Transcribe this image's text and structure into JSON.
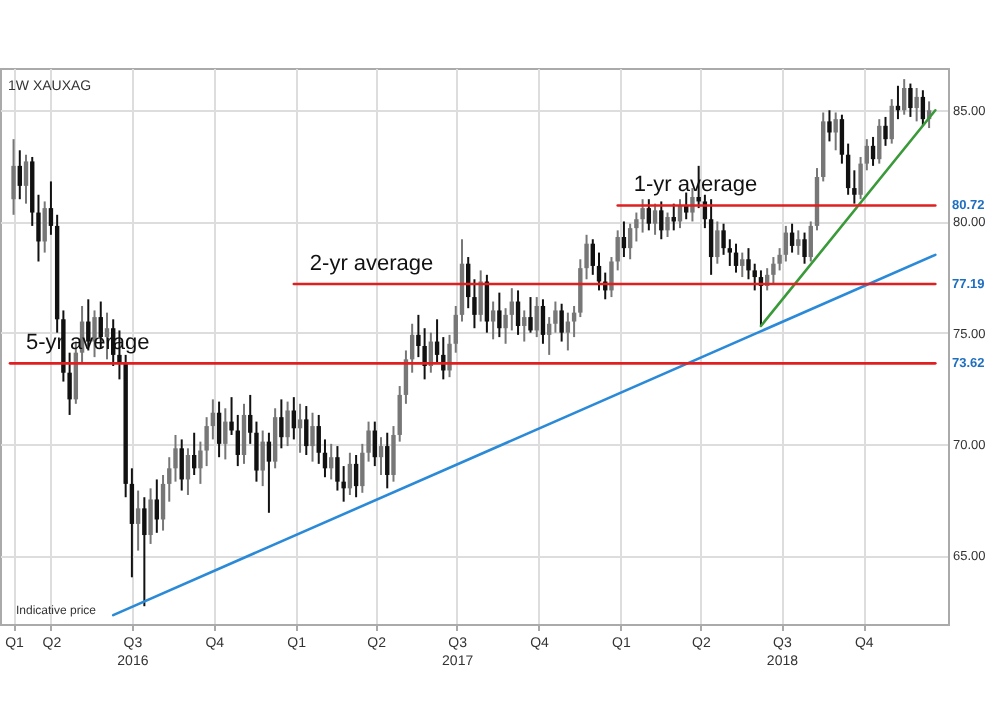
{
  "chart_data": {
    "type": "candlestick",
    "title": "1W XAUXAG",
    "x": [
      "2016-02-19",
      "2016-02-26",
      "2016-03-04",
      "2016-03-11",
      "2016-03-18",
      "2016-03-25",
      "2016-04-01",
      "2016-04-08",
      "2016-04-15",
      "2016-04-22",
      "2016-04-29",
      "2016-05-06",
      "2016-05-13",
      "2016-05-20",
      "2016-05-27",
      "2016-06-03",
      "2016-06-10",
      "2016-06-17",
      "2016-06-24",
      "2016-07-01",
      "2016-07-08",
      "2016-07-15",
      "2016-07-22",
      "2016-07-29",
      "2016-08-05",
      "2016-08-12",
      "2016-08-19",
      "2016-08-26",
      "2016-09-02",
      "2016-09-09",
      "2016-09-16",
      "2016-09-23",
      "2016-09-30",
      "2016-10-07",
      "2016-10-14",
      "2016-10-21",
      "2016-10-28",
      "2016-11-04",
      "2016-11-11",
      "2016-11-18",
      "2016-11-25",
      "2016-12-02",
      "2016-12-09",
      "2016-12-16",
      "2016-12-23",
      "2016-12-30",
      "2017-01-06",
      "2017-01-13",
      "2017-01-20",
      "2017-01-27",
      "2017-02-03",
      "2017-02-10",
      "2017-02-17",
      "2017-02-24",
      "2017-03-03",
      "2017-03-10",
      "2017-03-17",
      "2017-03-24",
      "2017-03-31",
      "2017-04-07",
      "2017-04-14",
      "2017-04-21",
      "2017-04-28",
      "2017-05-05",
      "2017-05-12",
      "2017-05-19",
      "2017-05-26",
      "2017-06-02",
      "2017-06-09",
      "2017-06-16",
      "2017-06-23",
      "2017-06-30",
      "2017-07-07",
      "2017-07-14",
      "2017-07-21",
      "2017-07-28",
      "2017-08-04",
      "2017-08-11",
      "2017-08-18",
      "2017-08-25",
      "2017-09-01",
      "2017-09-08",
      "2017-09-15",
      "2017-09-22",
      "2017-09-29",
      "2017-10-06",
      "2017-10-13",
      "2017-10-20",
      "2017-10-27",
      "2017-11-03",
      "2017-11-10",
      "2017-11-17",
      "2017-11-24",
      "2017-12-01",
      "2017-12-08",
      "2017-12-15",
      "2017-12-22",
      "2017-12-29",
      "2018-01-05",
      "2018-01-12",
      "2018-01-19",
      "2018-01-26",
      "2018-02-02",
      "2018-02-09",
      "2018-02-16",
      "2018-02-23",
      "2018-03-02",
      "2018-03-09",
      "2018-03-16",
      "2018-03-23",
      "2018-03-30",
      "2018-04-06",
      "2018-04-13",
      "2018-04-20",
      "2018-04-27",
      "2018-05-04",
      "2018-05-11",
      "2018-05-18",
      "2018-05-25",
      "2018-06-01",
      "2018-06-08",
      "2018-06-15",
      "2018-06-22",
      "2018-06-29",
      "2018-07-06",
      "2018-07-13",
      "2018-07-20",
      "2018-07-27",
      "2018-08-03",
      "2018-08-10",
      "2018-08-17",
      "2018-08-24",
      "2018-08-31",
      "2018-09-07",
      "2018-09-14",
      "2018-09-21",
      "2018-09-28",
      "2018-10-05",
      "2018-10-12",
      "2018-10-19",
      "2018-10-26",
      "2018-11-02",
      "2018-11-09",
      "2018-11-16",
      "2018-11-23",
      "2018-11-30",
      "2018-12-07",
      "2018-12-14"
    ],
    "ohlc": [
      [
        81.0,
        83.7,
        80.3,
        82.5
      ],
      [
        82.5,
        83.2,
        81.0,
        81.6
      ],
      [
        81.6,
        83.0,
        80.8,
        82.7
      ],
      [
        82.7,
        82.9,
        79.8,
        80.4
      ],
      [
        80.4,
        81.2,
        78.2,
        79.1
      ],
      [
        79.1,
        80.9,
        78.6,
        80.6
      ],
      [
        80.6,
        81.8,
        79.4,
        79.8
      ],
      [
        79.8,
        80.3,
        75.0,
        75.6
      ],
      [
        75.6,
        76.0,
        72.8,
        73.2
      ],
      [
        73.2,
        74.1,
        71.3,
        72.0
      ],
      [
        72.0,
        74.6,
        71.8,
        74.1
      ],
      [
        74.1,
        76.2,
        73.6,
        75.5
      ],
      [
        75.5,
        76.5,
        74.2,
        74.6
      ],
      [
        74.6,
        76.0,
        73.9,
        75.7
      ],
      [
        75.7,
        76.4,
        74.3,
        74.8
      ],
      [
        74.8,
        75.9,
        73.8,
        75.2
      ],
      [
        75.2,
        75.6,
        73.5,
        74.0
      ],
      [
        74.0,
        75.1,
        72.9,
        73.6
      ],
      [
        73.6,
        74.0,
        67.6,
        68.2
      ],
      [
        68.2,
        68.9,
        64.0,
        66.4
      ],
      [
        66.4,
        67.9,
        65.2,
        67.1
      ],
      [
        67.1,
        67.6,
        62.7,
        65.9
      ],
      [
        65.9,
        68.0,
        65.5,
        67.5
      ],
      [
        67.5,
        68.4,
        66.0,
        66.6
      ],
      [
        66.6,
        68.6,
        66.1,
        68.2
      ],
      [
        68.2,
        69.4,
        67.4,
        68.9
      ],
      [
        68.9,
        70.4,
        68.3,
        69.8
      ],
      [
        69.8,
        70.2,
        67.9,
        68.4
      ],
      [
        68.4,
        69.8,
        67.7,
        69.5
      ],
      [
        69.5,
        70.5,
        68.6,
        68.9
      ],
      [
        68.9,
        70.1,
        68.2,
        69.7
      ],
      [
        69.7,
        71.2,
        69.0,
        70.8
      ],
      [
        70.8,
        72.0,
        70.2,
        71.4
      ],
      [
        71.4,
        71.9,
        69.4,
        70.0
      ],
      [
        70.0,
        71.6,
        69.3,
        71.0
      ],
      [
        71.0,
        72.1,
        70.4,
        70.6
      ],
      [
        70.6,
        71.3,
        69.0,
        69.5
      ],
      [
        69.5,
        71.8,
        69.1,
        71.3
      ],
      [
        71.3,
        72.2,
        70.0,
        70.5
      ],
      [
        70.5,
        71.0,
        68.3,
        68.8
      ],
      [
        68.8,
        70.6,
        68.1,
        70.1
      ],
      [
        70.1,
        70.5,
        66.9,
        69.2
      ],
      [
        69.2,
        71.6,
        68.9,
        71.2
      ],
      [
        71.2,
        72.0,
        69.8,
        70.3
      ],
      [
        70.3,
        71.9,
        69.9,
        71.5
      ],
      [
        71.5,
        72.1,
        70.2,
        70.7
      ],
      [
        70.7,
        71.8,
        69.6,
        71.1
      ],
      [
        71.1,
        71.7,
        69.5,
        69.9
      ],
      [
        69.9,
        71.4,
        69.2,
        70.8
      ],
      [
        70.8,
        71.3,
        69.1,
        69.6
      ],
      [
        69.6,
        70.2,
        68.5,
        68.9
      ],
      [
        68.9,
        70.0,
        68.4,
        69.4
      ],
      [
        69.4,
        69.9,
        67.9,
        68.3
      ],
      [
        68.3,
        69.0,
        67.4,
        68.0
      ],
      [
        68.0,
        69.6,
        67.7,
        69.1
      ],
      [
        69.1,
        69.5,
        67.6,
        68.1
      ],
      [
        68.1,
        70.0,
        67.8,
        69.6
      ],
      [
        69.6,
        71.0,
        69.2,
        70.6
      ],
      [
        70.6,
        71.0,
        69.0,
        69.4
      ],
      [
        69.4,
        70.3,
        68.6,
        69.9
      ],
      [
        69.9,
        70.5,
        68.0,
        68.6
      ],
      [
        68.6,
        70.8,
        68.3,
        70.4
      ],
      [
        70.4,
        72.6,
        70.1,
        72.2
      ],
      [
        72.2,
        74.2,
        71.8,
        73.8
      ],
      [
        73.8,
        75.4,
        73.2,
        74.9
      ],
      [
        74.9,
        75.8,
        73.9,
        74.4
      ],
      [
        74.4,
        75.2,
        72.9,
        73.5
      ],
      [
        73.5,
        75.0,
        73.2,
        74.6
      ],
      [
        74.6,
        75.6,
        73.6,
        74.0
      ],
      [
        74.0,
        74.8,
        72.9,
        73.3
      ],
      [
        73.3,
        74.9,
        73.0,
        74.5
      ],
      [
        74.5,
        76.2,
        74.1,
        75.8
      ],
      [
        75.8,
        79.2,
        75.5,
        78.1
      ],
      [
        78.1,
        78.4,
        76.1,
        76.6
      ],
      [
        76.6,
        77.4,
        75.2,
        75.8
      ],
      [
        75.8,
        77.8,
        75.5,
        77.3
      ],
      [
        77.3,
        77.6,
        75.0,
        75.5
      ],
      [
        75.5,
        76.4,
        74.7,
        76.0
      ],
      [
        76.0,
        76.8,
        74.8,
        75.2
      ],
      [
        75.2,
        76.1,
        74.5,
        75.8
      ],
      [
        75.8,
        77.0,
        75.1,
        76.4
      ],
      [
        76.4,
        76.9,
        74.9,
        75.3
      ],
      [
        75.3,
        76.0,
        74.6,
        75.7
      ],
      [
        75.7,
        76.6,
        75.0,
        75.1
      ],
      [
        75.1,
        76.6,
        74.8,
        76.2
      ],
      [
        76.2,
        76.5,
        74.5,
        74.9
      ],
      [
        74.9,
        75.7,
        74.0,
        75.4
      ],
      [
        75.4,
        76.4,
        75.0,
        76.0
      ],
      [
        76.0,
        76.3,
        74.6,
        75.0
      ],
      [
        75.0,
        75.9,
        74.2,
        75.5
      ],
      [
        75.5,
        76.2,
        74.8,
        75.9
      ],
      [
        75.9,
        78.3,
        75.7,
        77.9
      ],
      [
        77.9,
        79.4,
        77.4,
        79.0
      ],
      [
        79.0,
        79.2,
        77.6,
        78.0
      ],
      [
        78.0,
        78.6,
        76.9,
        77.3
      ],
      [
        77.3,
        77.7,
        76.5,
        76.9
      ],
      [
        76.9,
        78.4,
        76.6,
        78.2
      ],
      [
        78.2,
        79.6,
        77.8,
        79.3
      ],
      [
        79.3,
        80.0,
        78.4,
        78.8
      ],
      [
        78.8,
        79.9,
        78.3,
        79.7
      ],
      [
        79.7,
        80.4,
        79.1,
        80.1
      ],
      [
        80.1,
        81.0,
        79.5,
        80.6
      ],
      [
        80.6,
        81.0,
        79.6,
        79.9
      ],
      [
        79.9,
        80.8,
        79.4,
        80.5
      ],
      [
        80.5,
        80.9,
        79.2,
        79.6
      ],
      [
        79.6,
        80.4,
        79.3,
        80.2
      ],
      [
        80.2,
        80.8,
        79.6,
        80.0
      ],
      [
        80.0,
        81.0,
        79.7,
        80.7
      ],
      [
        80.7,
        81.3,
        80.1,
        80.4
      ],
      [
        80.4,
        81.5,
        80.0,
        81.1
      ],
      [
        81.1,
        82.5,
        80.6,
        80.9
      ],
      [
        80.9,
        81.2,
        79.7,
        80.1
      ],
      [
        80.1,
        81.0,
        77.6,
        78.4
      ],
      [
        78.4,
        80.0,
        78.1,
        79.6
      ],
      [
        79.6,
        79.9,
        78.5,
        78.8
      ],
      [
        78.8,
        79.2,
        78.0,
        78.6
      ],
      [
        78.6,
        79.0,
        77.7,
        78.0
      ],
      [
        78.0,
        78.6,
        77.5,
        78.3
      ],
      [
        78.3,
        78.8,
        77.4,
        77.8
      ],
      [
        77.8,
        78.1,
        76.9,
        77.5
      ],
      [
        77.5,
        77.8,
        75.3,
        77.1
      ],
      [
        77.1,
        77.9,
        76.9,
        77.6
      ],
      [
        77.6,
        78.4,
        77.2,
        78.1
      ],
      [
        78.1,
        78.8,
        77.8,
        78.5
      ],
      [
        78.5,
        79.8,
        78.2,
        79.5
      ],
      [
        79.5,
        79.9,
        78.6,
        78.9
      ],
      [
        78.9,
        79.6,
        78.5,
        79.2
      ],
      [
        79.2,
        79.5,
        78.1,
        78.4
      ],
      [
        78.4,
        80.0,
        78.2,
        79.8
      ],
      [
        79.8,
        82.4,
        79.6,
        82.0
      ],
      [
        82.0,
        84.9,
        81.8,
        84.5
      ],
      [
        84.5,
        85.0,
        83.6,
        84.0
      ],
      [
        84.0,
        84.9,
        83.2,
        84.6
      ],
      [
        84.6,
        84.8,
        82.6,
        83.0
      ],
      [
        83.0,
        83.5,
        81.2,
        81.5
      ],
      [
        81.5,
        82.3,
        80.8,
        81.2
      ],
      [
        81.2,
        82.9,
        81.0,
        82.6
      ],
      [
        82.6,
        83.7,
        82.3,
        83.4
      ],
      [
        83.4,
        83.8,
        82.5,
        82.8
      ],
      [
        82.8,
        84.6,
        82.6,
        84.3
      ],
      [
        84.3,
        84.7,
        83.4,
        83.7
      ],
      [
        83.7,
        85.5,
        83.5,
        85.2
      ],
      [
        85.2,
        86.1,
        84.6,
        85.0
      ],
      [
        85.0,
        86.4,
        84.8,
        86.0
      ],
      [
        86.0,
        86.2,
        84.7,
        85.1
      ],
      [
        85.1,
        86.0,
        84.5,
        85.6
      ],
      [
        85.6,
        85.9,
        84.3,
        84.6
      ],
      [
        84.6,
        85.4,
        84.2,
        85.0
      ]
    ],
    "series": [
      {
        "type": "line",
        "color": "#2a8ad8",
        "x": [
          "2016-06-10",
          "2018-12-21"
        ],
        "values": [
          62.3,
          78.5
        ]
      },
      {
        "type": "line",
        "color": "#3a9a3a",
        "x": [
          "2018-06-08",
          "2018-12-21"
        ],
        "values": [
          75.3,
          85.0
        ]
      },
      {
        "type": "line",
        "name": "1-yr average",
        "color": "#e02020",
        "x": [
          "2017-12-29",
          "2018-12-21"
        ],
        "values": [
          80.72,
          80.72
        ],
        "value_labels": [
          null,
          "80.72"
        ]
      },
      {
        "type": "line",
        "name": "2-yr average",
        "color": "#e02020",
        "x": [
          "2016-12-30",
          "2018-12-21"
        ],
        "values": [
          77.19,
          77.19
        ],
        "value_labels": [
          null,
          "77.19"
        ]
      },
      {
        "type": "line",
        "name": "5-yr average",
        "color": "#e02020",
        "x": [
          "2016-02-15",
          "2018-12-21"
        ],
        "values": [
          73.62,
          73.62
        ],
        "value_labels": [
          null,
          "73.62"
        ]
      }
    ],
    "annotations": [
      "Indicative price"
    ],
    "xlim": [
      "2016-02-15",
      "2018-12-24"
    ],
    "xticks": [
      {
        "value": "2016-02-19",
        "label": "Q1"
      },
      {
        "value": "2016-04-01",
        "label": "Q2"
      },
      {
        "value": "2016-07-01",
        "label": "Q3\n2016"
      },
      {
        "value": "2016-10-01",
        "label": "Q4"
      },
      {
        "value": "2017-01-01",
        "label": "Q1"
      },
      {
        "value": "2017-04-01",
        "label": "Q2"
      },
      {
        "value": "2017-07-01",
        "label": "Q3\n2017"
      },
      {
        "value": "2017-10-01",
        "label": "Q4"
      },
      {
        "value": "2018-01-01",
        "label": "Q1"
      },
      {
        "value": "2018-04-01",
        "label": "Q2"
      },
      {
        "value": "2018-07-01",
        "label": "Q3\n2018"
      },
      {
        "value": "2018-10-01",
        "label": "Q4"
      }
    ],
    "ylim": [
      61.9,
      86.9
    ],
    "yticks": [
      {
        "value": 65,
        "label": "65.00"
      },
      {
        "value": 70,
        "label": "70.00"
      },
      {
        "value": 75,
        "label": "75.00"
      },
      {
        "value": 80,
        "label": "80.00"
      },
      {
        "value": 85,
        "label": "85.00"
      }
    ],
    "grid": true
  }
}
